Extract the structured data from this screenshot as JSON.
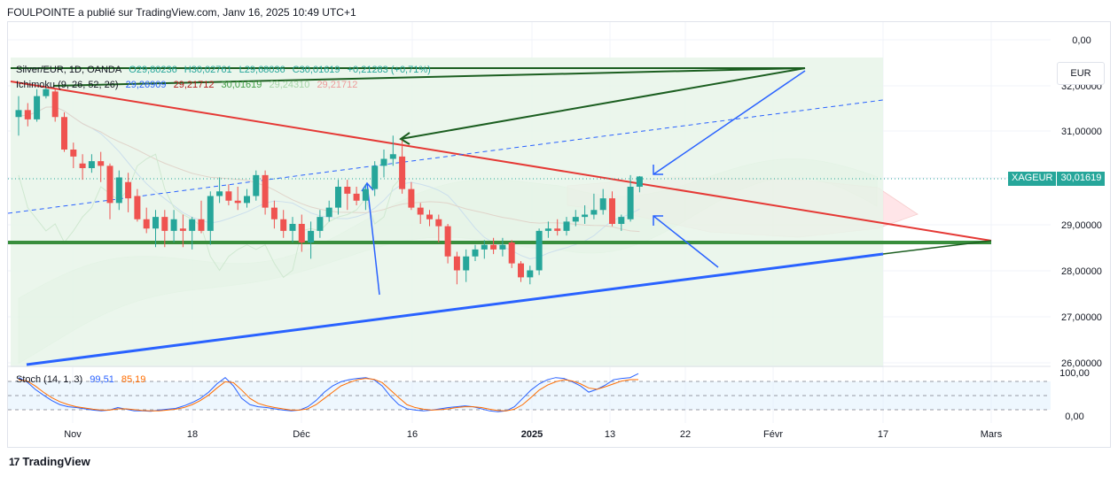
{
  "header": {
    "publish_line": "FOULPOINTE a publié sur TradingView.com, Janv 16, 2025 10:49 UTC+1"
  },
  "legend_main": {
    "symbol": "Silver/EUR, 1D, OANDA",
    "open": "O29,80236",
    "high": "H30,02761",
    "low": "L29,68036",
    "close": "C30,01619",
    "change": "+0,21283 (+0,71%)"
  },
  "legend_ichimoku": {
    "name": "Ichimoku (9, 26, 52, 26)",
    "v1": "29,26909",
    "v2": "29,21712",
    "v3": "30,01619",
    "v4": "29,24310",
    "v5": "29,21712"
  },
  "legend_stoch": {
    "name": "Stoch (14, 1, 3)",
    "k": "99,51",
    "d": "85,19"
  },
  "currency": "EUR",
  "price_tag": {
    "symbol": "XAGEUR",
    "value": "30,01619"
  },
  "footer": {
    "brand": "TradingView"
  },
  "colors": {
    "up": "#26a69a",
    "down": "#ef5350",
    "conversion": "#2962ff",
    "base": "#b71c1c",
    "lagging": "#43a047",
    "stoch_k": "#2962ff",
    "stoch_d": "#ff6d00"
  },
  "chart_data": {
    "type": "candlestick",
    "x_tick_labels": [
      "Nov",
      "18",
      "Déc",
      "16",
      "2025",
      "13",
      "22",
      "Févr",
      "17",
      "Mars"
    ],
    "price_tick_labels": [
      "0,00",
      "32,00000",
      "31,00000",
      "29,00000",
      "28,00000",
      "27,00000",
      "26,00000"
    ],
    "stoch_tick_labels": [
      "100,00",
      "0,00"
    ],
    "ylim": [
      26,
      32
    ],
    "candles": [
      [
        31.3,
        31.75,
        30.9,
        31.45
      ],
      [
        31.45,
        31.6,
        31.1,
        31.25
      ],
      [
        31.25,
        31.9,
        31.2,
        31.75
      ],
      [
        31.75,
        31.95,
        31.7,
        31.9
      ],
      [
        31.85,
        31.9,
        31.2,
        31.3
      ],
      [
        31.3,
        31.4,
        30.55,
        30.6
      ],
      [
        30.6,
        30.75,
        30.2,
        30.45
      ],
      [
        30.3,
        30.5,
        29.95,
        30.2
      ],
      [
        30.2,
        30.5,
        30.1,
        30.35
      ],
      [
        30.35,
        30.55,
        29.9,
        30.25
      ],
      [
        30.25,
        30.3,
        29.1,
        29.45
      ],
      [
        29.45,
        30.15,
        29.3,
        30.0
      ],
      [
        29.9,
        30.1,
        29.25,
        29.55
      ],
      [
        29.6,
        29.75,
        29.05,
        29.1
      ],
      [
        29.1,
        29.35,
        28.8,
        28.9
      ],
      [
        28.9,
        29.3,
        28.5,
        29.15
      ],
      [
        29.15,
        29.3,
        28.5,
        28.85
      ],
      [
        28.85,
        29.3,
        28.6,
        29.1
      ],
      [
        28.9,
        29.2,
        28.5,
        28.85
      ],
      [
        28.85,
        29.15,
        28.45,
        29.1
      ],
      [
        29.1,
        29.5,
        28.8,
        28.85
      ],
      [
        28.85,
        29.7,
        28.55,
        29.6
      ],
      [
        29.6,
        30.0,
        29.45,
        29.7
      ],
      [
        29.7,
        29.85,
        29.4,
        29.5
      ],
      [
        29.5,
        29.8,
        29.3,
        29.45
      ],
      [
        29.45,
        29.75,
        29.35,
        29.6
      ],
      [
        29.6,
        30.15,
        29.5,
        30.05
      ],
      [
        30.05,
        30.15,
        29.2,
        29.35
      ],
      [
        29.35,
        29.5,
        28.9,
        29.1
      ],
      [
        29.1,
        29.3,
        28.7,
        28.85
      ],
      [
        28.85,
        29.15,
        28.6,
        29.0
      ],
      [
        29.0,
        29.2,
        28.4,
        28.6
      ],
      [
        28.6,
        29.05,
        28.25,
        28.85
      ],
      [
        28.85,
        29.3,
        28.7,
        29.15
      ],
      [
        29.15,
        29.5,
        29.05,
        29.35
      ],
      [
        29.35,
        29.95,
        29.2,
        29.8
      ],
      [
        29.8,
        29.95,
        29.3,
        29.65
      ],
      [
        29.65,
        29.8,
        29.4,
        29.5
      ],
      [
        29.5,
        29.85,
        29.3,
        29.75
      ],
      [
        29.75,
        30.35,
        29.6,
        30.25
      ],
      [
        30.25,
        30.6,
        30.0,
        30.4
      ],
      [
        30.4,
        30.9,
        30.25,
        30.5
      ],
      [
        30.45,
        30.8,
        29.65,
        29.75
      ],
      [
        29.75,
        29.9,
        29.3,
        29.35
      ],
      [
        29.35,
        29.45,
        29.0,
        29.2
      ],
      [
        29.2,
        29.3,
        28.95,
        29.1
      ],
      [
        29.1,
        29.2,
        28.6,
        28.95
      ],
      [
        28.95,
        29.0,
        28.15,
        28.3
      ],
      [
        28.3,
        28.4,
        27.7,
        28.0
      ],
      [
        28.0,
        28.45,
        27.75,
        28.3
      ],
      [
        28.3,
        28.55,
        28.2,
        28.45
      ],
      [
        28.45,
        28.65,
        28.25,
        28.55
      ],
      [
        28.55,
        28.7,
        28.35,
        28.45
      ],
      [
        28.45,
        28.7,
        28.3,
        28.55
      ],
      [
        28.6,
        28.65,
        28.05,
        28.15
      ],
      [
        28.15,
        28.2,
        27.75,
        27.85
      ],
      [
        27.85,
        28.1,
        27.7,
        28.0
      ],
      [
        28.0,
        28.9,
        27.9,
        28.85
      ],
      [
        28.85,
        29.05,
        28.7,
        28.9
      ],
      [
        28.9,
        29.1,
        28.75,
        28.85
      ],
      [
        28.85,
        29.15,
        28.75,
        29.05
      ],
      [
        29.05,
        29.3,
        28.95,
        29.15
      ],
      [
        29.15,
        29.4,
        29.0,
        29.2
      ],
      [
        29.2,
        29.65,
        29.1,
        29.3
      ],
      [
        29.3,
        29.75,
        29.2,
        29.55
      ],
      [
        29.55,
        29.7,
        28.95,
        29.0
      ],
      [
        29.0,
        29.2,
        28.85,
        29.15
      ],
      [
        29.1,
        30.05,
        29.05,
        29.8
      ],
      [
        29.8,
        30.03,
        29.68,
        30.02
      ]
    ],
    "trend_levels": {
      "horizontal_support": 28.6,
      "cloud_top": 31.75
    },
    "stoch_k": [
      90,
      80,
      62,
      48,
      35,
      25,
      20,
      18,
      15,
      12,
      10,
      12,
      18,
      14,
      10,
      10,
      9,
      12,
      14,
      16,
      22,
      30,
      40,
      55,
      75,
      90,
      70,
      40,
      25,
      20,
      18,
      15,
      12,
      10,
      12,
      20,
      35,
      55,
      70,
      80,
      85,
      88,
      90,
      85,
      70,
      45,
      25,
      15,
      12,
      10,
      12,
      15,
      18,
      20,
      22,
      20,
      15,
      10,
      8,
      10,
      20,
      40,
      60,
      75,
      85,
      90,
      88,
      80,
      70,
      55,
      62,
      72,
      85,
      88,
      90,
      99.5
    ],
    "stoch_d": [
      85,
      82,
      70,
      55,
      42,
      32,
      25,
      20,
      17,
      14,
      12,
      12,
      15,
      15,
      13,
      11,
      10,
      10,
      12,
      14,
      18,
      25,
      35,
      48,
      65,
      80,
      78,
      60,
      40,
      28,
      22,
      18,
      15,
      12,
      12,
      15,
      25,
      40,
      55,
      70,
      78,
      85,
      88,
      86,
      78,
      60,
      42,
      25,
      18,
      14,
      12,
      13,
      15,
      18,
      20,
      20,
      18,
      14,
      11,
      10,
      14,
      25,
      42,
      60,
      72,
      80,
      85,
      82,
      75,
      65,
      62,
      68,
      75,
      82,
      85,
      85.2
    ]
  }
}
